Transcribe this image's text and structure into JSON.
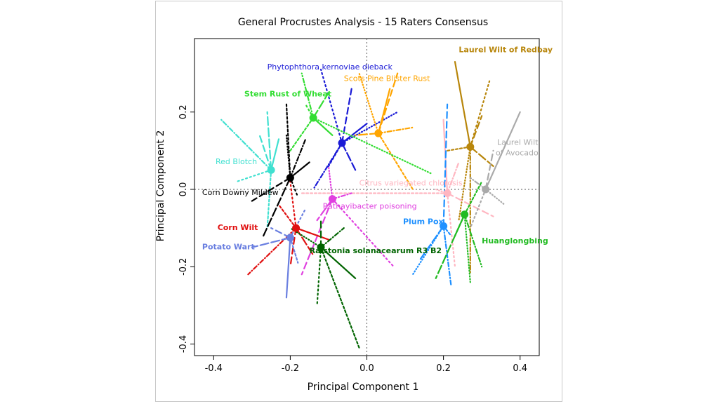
{
  "chart_data": {
    "type": "scatter",
    "title": "General Procrustes Analysis - 15 Raters Consensus",
    "xlabel": "Principal Component 1",
    "ylabel": "Principal Component 2",
    "xlim": [
      -0.45,
      0.45
    ],
    "ylim": [
      -0.43,
      0.39
    ],
    "xticks": [
      "-0.4",
      "-0.2",
      "0.0",
      "0.2",
      "0.4"
    ],
    "yticks": [
      "-0.4",
      "-0.2",
      "0.0",
      "0.2"
    ],
    "reference_lines": {
      "x": 0,
      "y": 0,
      "style": "dotted"
    },
    "grid": false,
    "legend": "none",
    "series": [
      {
        "name": "Laurel Wilt of Redbay",
        "color": "#b8860b",
        "x": 0.27,
        "y": 0.11,
        "bold": true,
        "label_x": 0.24,
        "label_y": 0.355,
        "label_anchor": "start",
        "rays": [
          [
            0.23,
            0.33
          ],
          [
            0.32,
            0.28
          ],
          [
            0.3,
            0.19
          ],
          [
            0.24,
            -0.08
          ],
          [
            0.27,
            -0.22
          ],
          [
            0.33,
            0.06
          ],
          [
            0.21,
            0.1
          ]
        ]
      },
      {
        "name": "Phytophthora kernoviae dieback",
        "color": "#1a1ad6",
        "x": -0.065,
        "y": 0.12,
        "bold": false,
        "label_x": -0.26,
        "label_y": 0.31,
        "label_anchor": "start",
        "rays": [
          [
            -0.12,
            0.31
          ],
          [
            -0.04,
            0.26
          ],
          [
            0.08,
            0.2
          ],
          [
            -0.14,
            0.0
          ],
          [
            -0.03,
            0.05
          ],
          [
            -0.1,
            0.06
          ],
          [
            0.0,
            0.17
          ]
        ]
      },
      {
        "name": "Scots Pine Blister Rust",
        "color": "#ffa500",
        "x": 0.03,
        "y": 0.145,
        "bold": false,
        "label_x": -0.06,
        "label_y": 0.28,
        "label_anchor": "start",
        "rays": [
          [
            0.08,
            0.3
          ],
          [
            -0.02,
            0.3
          ],
          [
            0.12,
            0.16
          ],
          [
            -0.03,
            0.14
          ],
          [
            0.12,
            0.0
          ],
          [
            0.06,
            0.26
          ]
        ]
      },
      {
        "name": "Stem Rust of Wheat",
        "color": "#33dd33",
        "x": -0.14,
        "y": 0.185,
        "bold": true,
        "label_x": -0.32,
        "label_y": 0.24,
        "label_anchor": "start",
        "rays": [
          [
            0.17,
            0.04
          ],
          [
            -0.17,
            0.3
          ],
          [
            -0.1,
            0.25
          ],
          [
            -0.2,
            0.1
          ],
          [
            -0.09,
            0.14
          ],
          [
            -0.16,
            0.22
          ]
        ]
      },
      {
        "name": "Red Blotch",
        "color": "#40e0d0",
        "x": -0.25,
        "y": 0.05,
        "bold": false,
        "label_x": -0.395,
        "label_y": 0.065,
        "label_anchor": "start",
        "rays": [
          [
            -0.38,
            0.18
          ],
          [
            -0.26,
            0.2
          ],
          [
            -0.26,
            -0.1
          ],
          [
            -0.23,
            0.13
          ],
          [
            -0.34,
            0.02
          ],
          [
            -0.28,
            0.14
          ]
        ]
      },
      {
        "name": "Corn Downy Mildew",
        "color": "#000000",
        "x": -0.2,
        "y": 0.03,
        "bold": false,
        "label_x": -0.43,
        "label_y": -0.015,
        "label_anchor": "start",
        "rays": [
          [
            -0.27,
            -0.12
          ],
          [
            -0.21,
            0.22
          ],
          [
            -0.15,
            0.07
          ],
          [
            -0.18,
            -0.02
          ],
          [
            -0.3,
            -0.03
          ],
          [
            -0.21,
            0.14
          ],
          [
            -0.16,
            0.13
          ]
        ]
      },
      {
        "name": "Citrus variegated chlorosis",
        "color": "#ffb6c1",
        "x": 0.21,
        "y": -0.01,
        "bold": false,
        "label_x": -0.02,
        "label_y": 0.01,
        "label_anchor": "start",
        "rays": [
          [
            -0.17,
            -0.01
          ],
          [
            0.2,
            0.18
          ],
          [
            0.23,
            -0.2
          ],
          [
            0.33,
            -0.07
          ],
          [
            0.18,
            0.0
          ],
          [
            0.24,
            0.07
          ]
        ]
      },
      {
        "name": "Laurel Wilt of Avocado",
        "color": "#aaaaaa",
        "x": 0.31,
        "y": 0.0,
        "bold": false,
        "label_x": 0.34,
        "label_y": 0.115,
        "label_anchor": "start",
        "rays": [
          [
            0.4,
            0.2
          ],
          [
            0.27,
            -0.1
          ],
          [
            0.33,
            0.1
          ],
          [
            0.36,
            -0.04
          ],
          [
            0.27,
            0.03
          ]
        ]
      },
      {
        "name": "Rathayibacter poisoning",
        "color": "#e040e0",
        "x": -0.09,
        "y": -0.025,
        "bold": false,
        "label_x": -0.115,
        "label_y": -0.05,
        "label_anchor": "start",
        "rays": [
          [
            0.07,
            -0.2
          ],
          [
            -0.17,
            -0.22
          ],
          [
            -0.1,
            0.06
          ],
          [
            -0.04,
            -0.01
          ],
          [
            -0.13,
            -0.08
          ]
        ]
      },
      {
        "name": "Plum Pox",
        "color": "#1e90ff",
        "x": 0.2,
        "y": -0.095,
        "bold": true,
        "label_x": 0.2,
        "label_y": -0.09,
        "label_anchor": "end",
        "rays": [
          [
            0.21,
            0.22
          ],
          [
            0.12,
            -0.22
          ],
          [
            0.22,
            -0.25
          ],
          [
            0.14,
            -0.18
          ],
          [
            0.22,
            -0.12
          ]
        ]
      },
      {
        "name": "Huanglongbing",
        "color": "#22bb22",
        "x": 0.255,
        "y": -0.065,
        "bold": true,
        "label_x": 0.3,
        "label_y": -0.14,
        "label_anchor": "start",
        "rays": [
          [
            0.27,
            -0.24
          ],
          [
            0.3,
            -0.2
          ],
          [
            0.18,
            -0.23
          ],
          [
            0.3,
            0.02
          ],
          [
            0.23,
            -0.12
          ]
        ]
      },
      {
        "name": "Corn Wilt",
        "color": "#e01010",
        "x": -0.185,
        "y": -0.1,
        "bold": true,
        "label_x": -0.39,
        "label_y": -0.105,
        "label_anchor": "start",
        "rays": [
          [
            -0.31,
            -0.22
          ],
          [
            -0.14,
            -0.17
          ],
          [
            -0.23,
            -0.04
          ],
          [
            -0.1,
            -0.13
          ],
          [
            -0.2,
            0.02
          ],
          [
            -0.2,
            -0.2
          ]
        ]
      },
      {
        "name": "Potato Wart",
        "color": "#6a7fe0",
        "x": -0.2,
        "y": -0.125,
        "bold": true,
        "label_x": -0.43,
        "label_y": -0.155,
        "label_anchor": "start",
        "rays": [
          [
            -0.3,
            -0.15
          ],
          [
            -0.18,
            -0.19
          ],
          [
            -0.21,
            -0.28
          ],
          [
            -0.16,
            -0.05
          ],
          [
            -0.25,
            -0.1
          ]
        ]
      },
      {
        "name": "Ralstonia solanacearum R3 B2",
        "color": "#006400",
        "x": -0.12,
        "y": -0.15,
        "bold": true,
        "label_x": -0.15,
        "label_y": -0.165,
        "label_anchor": "start",
        "rays": [
          [
            -0.02,
            -0.41
          ],
          [
            -0.03,
            -0.23
          ],
          [
            -0.13,
            -0.3
          ],
          [
            -0.12,
            -0.08
          ],
          [
            -0.2,
            -0.1
          ],
          [
            -0.06,
            -0.1
          ]
        ]
      }
    ]
  }
}
